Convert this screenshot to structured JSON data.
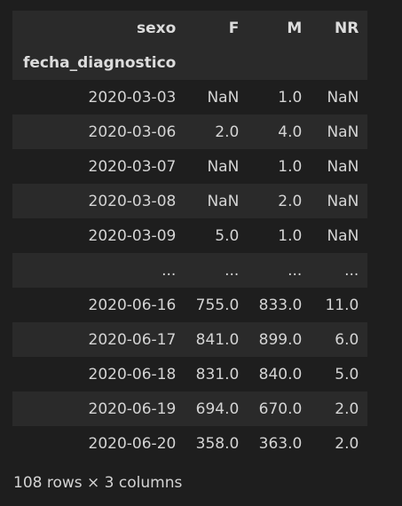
{
  "table": {
    "columns_name": "sexo",
    "columns": [
      "F",
      "M",
      "NR"
    ],
    "index_name": "fecha_diagnostico",
    "rows": [
      {
        "index": "2020-03-03",
        "values": [
          "NaN",
          "1.0",
          "NaN"
        ]
      },
      {
        "index": "2020-03-06",
        "values": [
          "2.0",
          "4.0",
          "NaN"
        ]
      },
      {
        "index": "2020-03-07",
        "values": [
          "NaN",
          "1.0",
          "NaN"
        ]
      },
      {
        "index": "2020-03-08",
        "values": [
          "NaN",
          "2.0",
          "NaN"
        ]
      },
      {
        "index": "2020-03-09",
        "values": [
          "5.0",
          "1.0",
          "NaN"
        ]
      },
      {
        "index": "...",
        "values": [
          "...",
          "...",
          "..."
        ]
      },
      {
        "index": "2020-06-16",
        "values": [
          "755.0",
          "833.0",
          "11.0"
        ]
      },
      {
        "index": "2020-06-17",
        "values": [
          "841.0",
          "899.0",
          "6.0"
        ]
      },
      {
        "index": "2020-06-18",
        "values": [
          "831.0",
          "840.0",
          "5.0"
        ]
      },
      {
        "index": "2020-06-19",
        "values": [
          "694.0",
          "670.0",
          "2.0"
        ]
      },
      {
        "index": "2020-06-20",
        "values": [
          "358.0",
          "363.0",
          "2.0"
        ]
      }
    ]
  },
  "footer": {
    "shape_text": "108 rows × 3 columns"
  },
  "colors": {
    "background": "#1e1e1e",
    "row_stripe": "#2a2a2a",
    "text": "#d4d4d4"
  }
}
